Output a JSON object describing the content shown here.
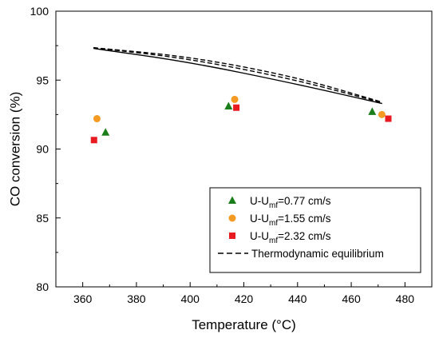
{
  "chart_data": {
    "type": "scatter",
    "xlabel": "Temperature (°C)",
    "ylabel": "CO conversion (%)",
    "xlim": [
      350,
      490
    ],
    "ylim": [
      80,
      100
    ],
    "xticks": [
      360,
      380,
      400,
      420,
      440,
      460,
      480
    ],
    "yticks": [
      80,
      85,
      90,
      95,
      100
    ],
    "legend_position": "bottom-right",
    "series": [
      {
        "name": "U-U",
        "name_sub": "mf",
        "name_rest": "=0.77 cm/s",
        "marker": "triangle",
        "color": "#1a7f1a",
        "points": [
          [
            368.5,
            91.2
          ],
          [
            414.3,
            93.1
          ],
          [
            467.8,
            92.7
          ]
        ]
      },
      {
        "name": "U-U",
        "name_sub": "mf",
        "name_rest": "=1.55 cm/s",
        "marker": "circle",
        "color": "#f59a23",
        "points": [
          [
            365.3,
            92.2
          ],
          [
            416.6,
            93.6
          ],
          [
            471.4,
            92.5
          ]
        ]
      },
      {
        "name": "U-U",
        "name_sub": "mf",
        "name_rest": "=2.32 cm/s",
        "marker": "square",
        "color": "#e8191f",
        "points": [
          [
            364.2,
            90.65
          ],
          [
            417.2,
            93.0
          ],
          [
            473.8,
            92.2
          ]
        ]
      }
    ],
    "equilibrium": {
      "name": "Thermodynamic equilibrium",
      "lines": [
        {
          "style": "solid",
          "points": [
            [
              364.0,
              97.3
            ],
            [
              400.0,
              96.3
            ],
            [
              440.0,
              94.7
            ],
            [
              471.5,
              93.3
            ]
          ]
        },
        {
          "style": "dashed",
          "points": [
            [
              364.0,
              97.35
            ],
            [
              400.0,
              96.55
            ],
            [
              440.0,
              95.0
            ],
            [
              471.5,
              93.35
            ]
          ]
        },
        {
          "style": "dashed",
          "points": [
            [
              364.0,
              97.35
            ],
            [
              400.0,
              96.7
            ],
            [
              440.0,
              95.2
            ],
            [
              471.5,
              93.4
            ]
          ]
        }
      ]
    }
  }
}
